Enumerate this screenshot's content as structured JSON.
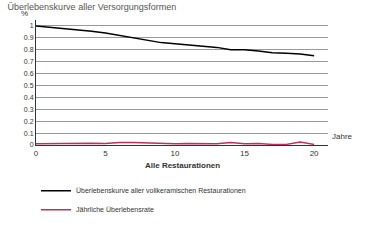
{
  "chart_data": {
    "type": "line",
    "title": "Überlebenskurve aller Versorgungsformen",
    "xlabel": "Jahre",
    "ylabel": "%",
    "annotations": [
      "Alle Restaurationen"
    ],
    "x": [
      0,
      1,
      2,
      3,
      4,
      5,
      6,
      7,
      8,
      9,
      10,
      11,
      12,
      13,
      14,
      15,
      16,
      17,
      18,
      19,
      20
    ],
    "series": [
      {
        "name": "Überlebenskurve aller vollkeramischen Restaurationen",
        "color": "#000000",
        "values": [
          1.0,
          0.99,
          0.98,
          0.97,
          0.955,
          0.94,
          0.92,
          0.9,
          0.88,
          0.86,
          0.85,
          0.84,
          0.83,
          0.82,
          0.8,
          0.8,
          0.79,
          0.775,
          0.77,
          0.765,
          0.75
        ]
      },
      {
        "name": "Jährliche Überlebensrate",
        "color": "#c0305a",
        "values": [
          0.01,
          0.012,
          0.01,
          0.01,
          0.015,
          0.012,
          0.02,
          0.02,
          0.015,
          0.012,
          0.01,
          0.012,
          0.01,
          0.01,
          0.02,
          0.01,
          0.012,
          0.005,
          0.005,
          0.025,
          0.005
        ]
      }
    ],
    "xlim": [
      0,
      21
    ],
    "xticks": [
      0,
      5,
      10,
      15,
      20
    ],
    "ylim": [
      0,
      1.05
    ],
    "yticks": [
      0,
      0.1,
      0.2,
      0.3,
      0.4,
      0.5,
      0.6,
      0.7,
      0.8,
      0.9,
      1
    ],
    "grid": true,
    "legend": "bottom"
  }
}
